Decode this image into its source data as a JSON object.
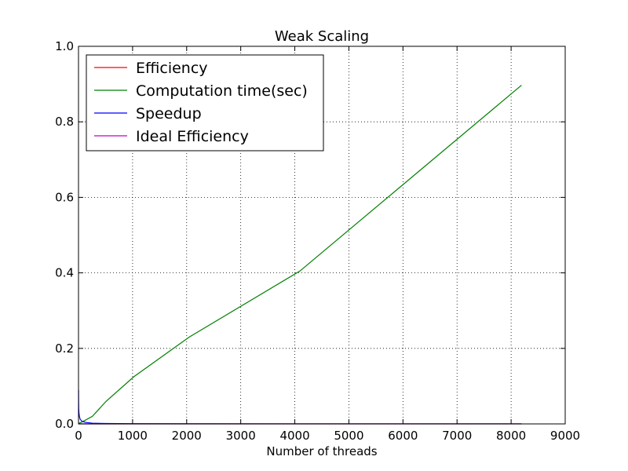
{
  "chart_data": {
    "type": "line",
    "title": "Weak Scaling",
    "xlabel": "Number of threads",
    "ylabel": "",
    "xlim": [
      0,
      9000
    ],
    "ylim": [
      0,
      1.0
    ],
    "xticks": [
      "0",
      "1000",
      "2000",
      "3000",
      "4000",
      "5000",
      "6000",
      "7000",
      "8000",
      "9000"
    ],
    "yticks": [
      "0.0",
      "0.2",
      "0.4",
      "0.6",
      "0.8",
      "1.0"
    ],
    "grid": true,
    "legend_position": "top-left",
    "series": [
      {
        "name": "Efficiency",
        "color": "#ff0000",
        "x": [
          1,
          2,
          4,
          8,
          16,
          32,
          64,
          128,
          256,
          512,
          1024,
          2048,
          4096,
          8192
        ],
        "y": [
          0.0001,
          0.0001,
          0.0001,
          0.0001,
          0.0001,
          0.0001,
          0.0001,
          0.0001,
          0.0001,
          0.0001,
          0.0001,
          0.0001,
          0.0001,
          0.0001
        ]
      },
      {
        "name": "Computation time(sec)",
        "color": "#008000",
        "x": [
          1,
          2,
          4,
          8,
          16,
          32,
          64,
          128,
          256,
          512,
          1024,
          2048,
          4096,
          8192
        ],
        "y": [
          0.001,
          0.001,
          0.001,
          0.002,
          0.002,
          0.003,
          0.005,
          0.01,
          0.02,
          0.06,
          0.125,
          0.23,
          0.405,
          0.897
        ]
      },
      {
        "name": "Speedup",
        "color": "#0000ff",
        "x": [
          1,
          2,
          4,
          8,
          16,
          32,
          64,
          128,
          256,
          512,
          1024,
          2048,
          4096,
          8192
        ],
        "y": [
          0.09,
          0.06,
          0.04,
          0.03,
          0.02,
          0.012,
          0.007,
          0.004,
          0.002,
          0.001,
          0.0005,
          0.0002,
          0.0001,
          0.0001
        ]
      },
      {
        "name": "Ideal Efficiency",
        "color": "#bf00bf",
        "x": [
          1,
          8192
        ],
        "y": [
          0.0,
          0.0
        ]
      }
    ]
  }
}
